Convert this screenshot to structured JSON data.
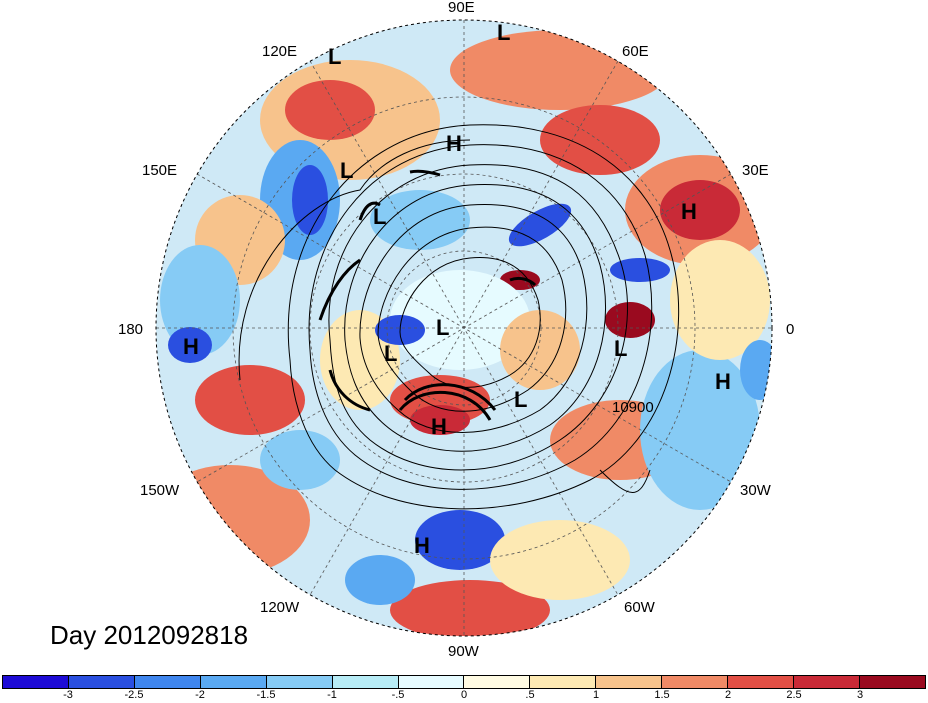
{
  "map": {
    "title_text": "Day 2012092818",
    "contour_label": "10900",
    "longitude_labels": [
      "90E",
      "60E",
      "30E",
      "0",
      "30W",
      "60W",
      "90W",
      "120W",
      "150W",
      "180",
      "150E",
      "120E"
    ],
    "pressure_centers": [
      {
        "type": "L",
        "region": "Siberia"
      },
      {
        "type": "L",
        "region": "Central Asia"
      },
      {
        "type": "H",
        "region": "Arctic Russia"
      },
      {
        "type": "L",
        "region": "East Asia"
      },
      {
        "type": "L",
        "region": "Northeast Asia"
      },
      {
        "type": "H",
        "region": "Eastern Europe"
      },
      {
        "type": "L",
        "region": "Arctic"
      },
      {
        "type": "L",
        "region": "Alaska"
      },
      {
        "type": "H",
        "region": "Central Pacific"
      },
      {
        "type": "H",
        "region": "Canada"
      },
      {
        "type": "L",
        "region": "Labrador"
      },
      {
        "type": "L",
        "region": "North Atlantic / Britain"
      },
      {
        "type": "H",
        "region": "North Africa"
      },
      {
        "type": "H",
        "region": "Mexico"
      }
    ]
  },
  "colorbar": {
    "colors": [
      "#1d0bd6",
      "#2a4fe0",
      "#3f86ee",
      "#5aa9f2",
      "#86cbf5",
      "#b7ecf6",
      "#e6fbff",
      "#fffbe3",
      "#fde9b3",
      "#f7c38c",
      "#f08a66",
      "#e24f45",
      "#c92a37",
      "#9a0a1f"
    ],
    "labels": [
      "-3",
      "-2.5",
      "-2",
      "-1.5",
      "-1",
      "-.5",
      "0",
      ".5",
      "1",
      "1.5",
      "2",
      "2.5",
      "3"
    ]
  }
}
